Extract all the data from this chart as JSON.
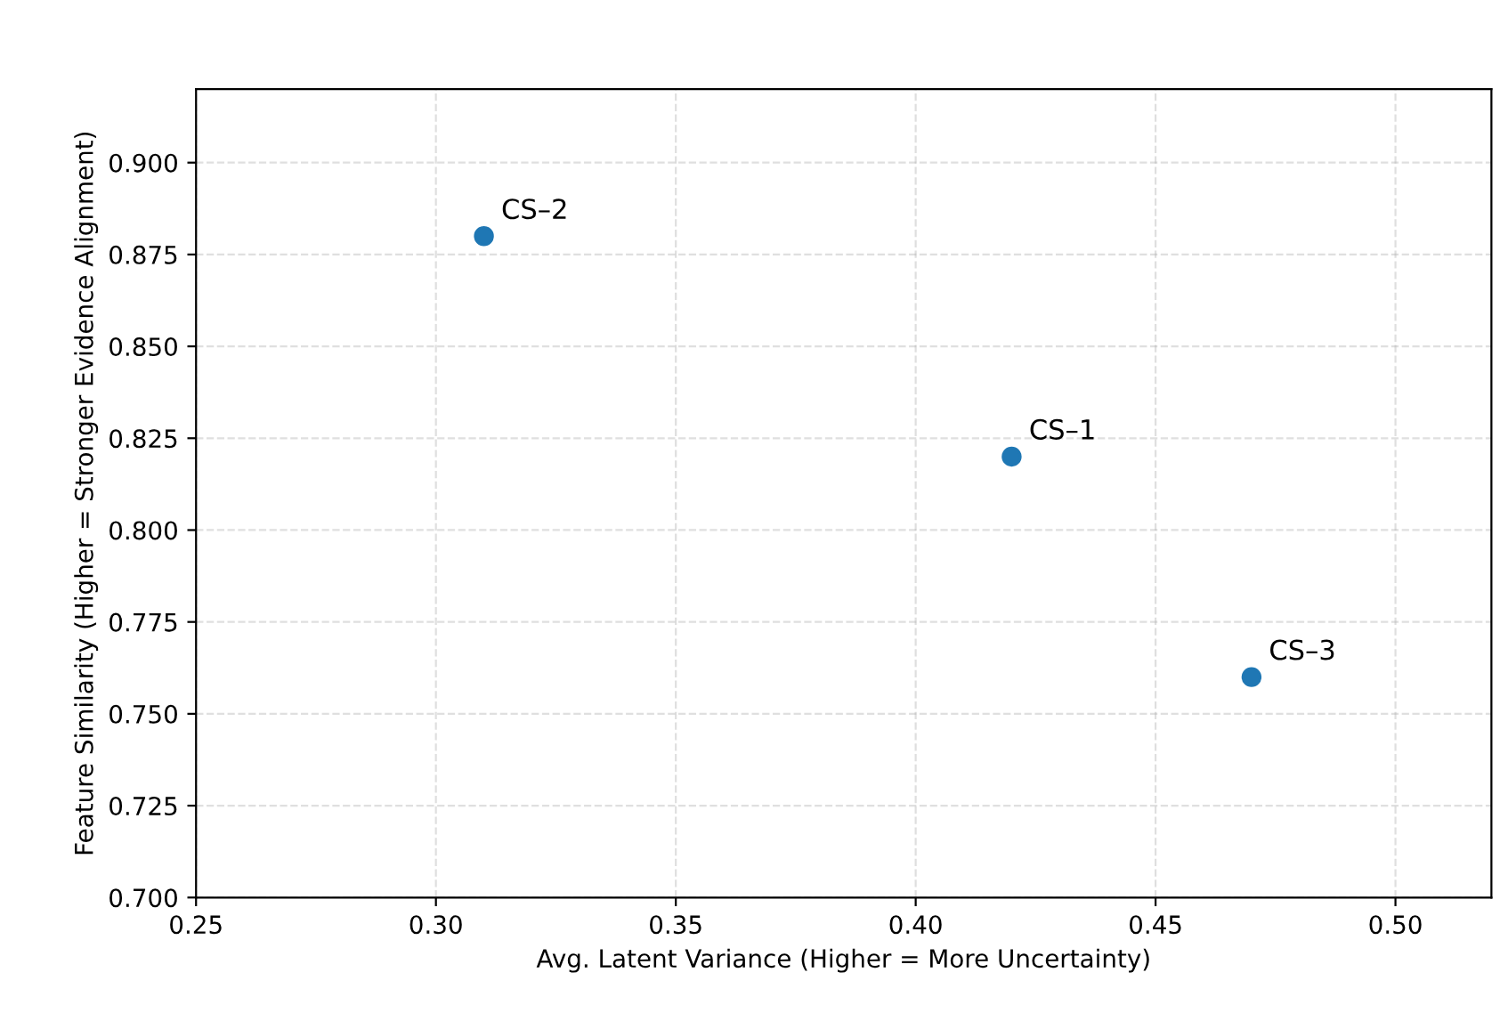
{
  "chart_data": {
    "type": "scatter",
    "xlabel": "Avg. Latent Variance (Higher = More Uncertainty)",
    "ylabel": "Feature Similarity (Higher = Stronger Evidence Alignment)",
    "x": [
      0.42,
      0.31,
      0.47
    ],
    "values": [
      0.82,
      0.88,
      0.76
    ],
    "color": "#1f77b4",
    "marker": "circle",
    "annotations": [
      {
        "text": "CS–1",
        "x": 0.42,
        "y": 0.82
      },
      {
        "text": "CS–2",
        "x": 0.31,
        "y": 0.88
      },
      {
        "text": "CS–3",
        "x": 0.47,
        "y": 0.76
      }
    ],
    "xlim": [
      0.25,
      0.52
    ],
    "xticks": [
      {
        "value": 0.25,
        "label": "0.25"
      },
      {
        "value": 0.3,
        "label": "0.30"
      },
      {
        "value": 0.35,
        "label": "0.35"
      },
      {
        "value": 0.4,
        "label": "0.40"
      },
      {
        "value": 0.45,
        "label": "0.45"
      },
      {
        "value": 0.5,
        "label": "0.50"
      }
    ],
    "ylim": [
      0.7,
      0.92
    ],
    "yticks": [
      {
        "value": 0.7,
        "label": "0.700"
      },
      {
        "value": 0.725,
        "label": "0.725"
      },
      {
        "value": 0.75,
        "label": "0.750"
      },
      {
        "value": 0.775,
        "label": "0.775"
      },
      {
        "value": 0.8,
        "label": "0.800"
      },
      {
        "value": 0.825,
        "label": "0.825"
      },
      {
        "value": 0.85,
        "label": "0.850"
      },
      {
        "value": 0.875,
        "label": "0.875"
      },
      {
        "value": 0.9,
        "label": "0.900"
      }
    ],
    "grid": true
  }
}
